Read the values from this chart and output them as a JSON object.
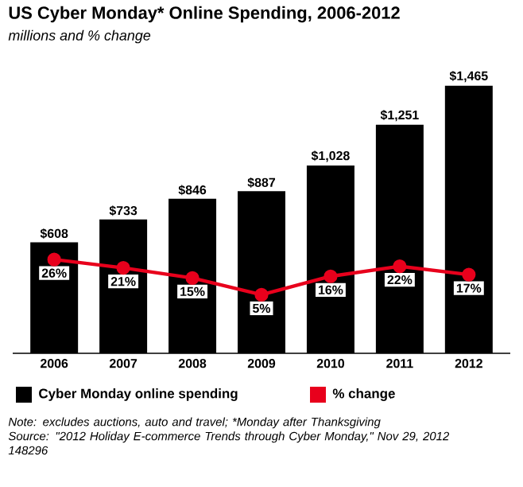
{
  "chart_data": {
    "type": "bar",
    "title": "US Cyber Monday* Online Spending, 2006-2012",
    "subtitle": "millions and % change",
    "categories": [
      "2006",
      "2007",
      "2008",
      "2009",
      "2010",
      "2011",
      "2012"
    ],
    "series": [
      {
        "name": "Cyber Monday online spending",
        "color": "#000000",
        "values": [
          608,
          733,
          846,
          887,
          1028,
          1251,
          1465
        ],
        "value_labels": [
          "$608",
          "$733",
          "$846",
          "$887",
          "$1,028",
          "$1,251",
          "$1,465"
        ]
      },
      {
        "name": "% change",
        "type": "line",
        "axis": "y2",
        "marker": "circle",
        "color": "#e8001c",
        "values": [
          26,
          21,
          15,
          5,
          16,
          22,
          17
        ],
        "value_labels": [
          "26%",
          "21%",
          "15%",
          "5%",
          "16%",
          "22%",
          "17%"
        ]
      }
    ],
    "legend": "bottom",
    "annotations": [
      "Note: excludes auctions, auto and travel; *Monday after Thanksgiving",
      "Source: \"2012 Holiday E-commerce Trends through Cyber Monday,\" Nov 29, 2012",
      "148296"
    ]
  }
}
